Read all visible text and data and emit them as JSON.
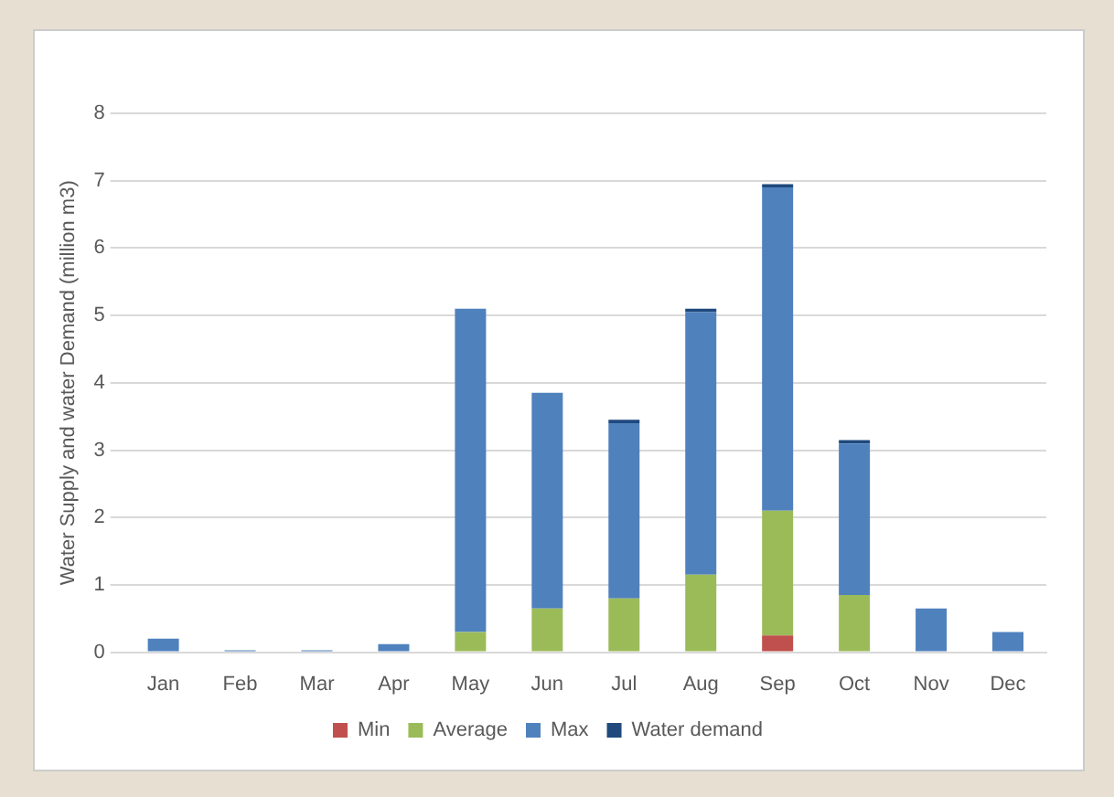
{
  "chart_data": {
    "type": "bar",
    "stacked": true,
    "ylabel": "Water Supply and water Demand (million m3)",
    "categories": [
      "Jan",
      "Feb",
      "Mar",
      "Apr",
      "May",
      "Jun",
      "Jul",
      "Aug",
      "Sep",
      "Oct",
      "Nov",
      "Dec"
    ],
    "series": [
      {
        "name": "Min",
        "color": "#c0504d",
        "values": [
          null,
          null,
          null,
          null,
          null,
          null,
          null,
          null,
          0.25,
          null,
          null,
          null
        ]
      },
      {
        "name": "Average",
        "color": "#9bbb59",
        "values": [
          null,
          null,
          null,
          null,
          0.3,
          0.65,
          0.8,
          1.15,
          1.85,
          0.85,
          null,
          null
        ]
      },
      {
        "name": "Max",
        "color": "#4f81bd",
        "values": [
          0.2,
          0.03,
          0.03,
          0.12,
          4.8,
          3.2,
          2.6,
          3.9,
          4.8,
          2.25,
          0.65,
          0.3
        ]
      },
      {
        "name": "Water demand",
        "color": "#1f497d",
        "values": [
          null,
          null,
          null,
          null,
          null,
          null,
          0.05,
          0.05,
          0.05,
          0.05,
          null,
          null
        ]
      }
    ],
    "ylim": [
      0,
      8
    ],
    "yticks": [
      0,
      1,
      2,
      3,
      4,
      5,
      6,
      7,
      8
    ],
    "grid": "y",
    "legend": "bottom"
  }
}
